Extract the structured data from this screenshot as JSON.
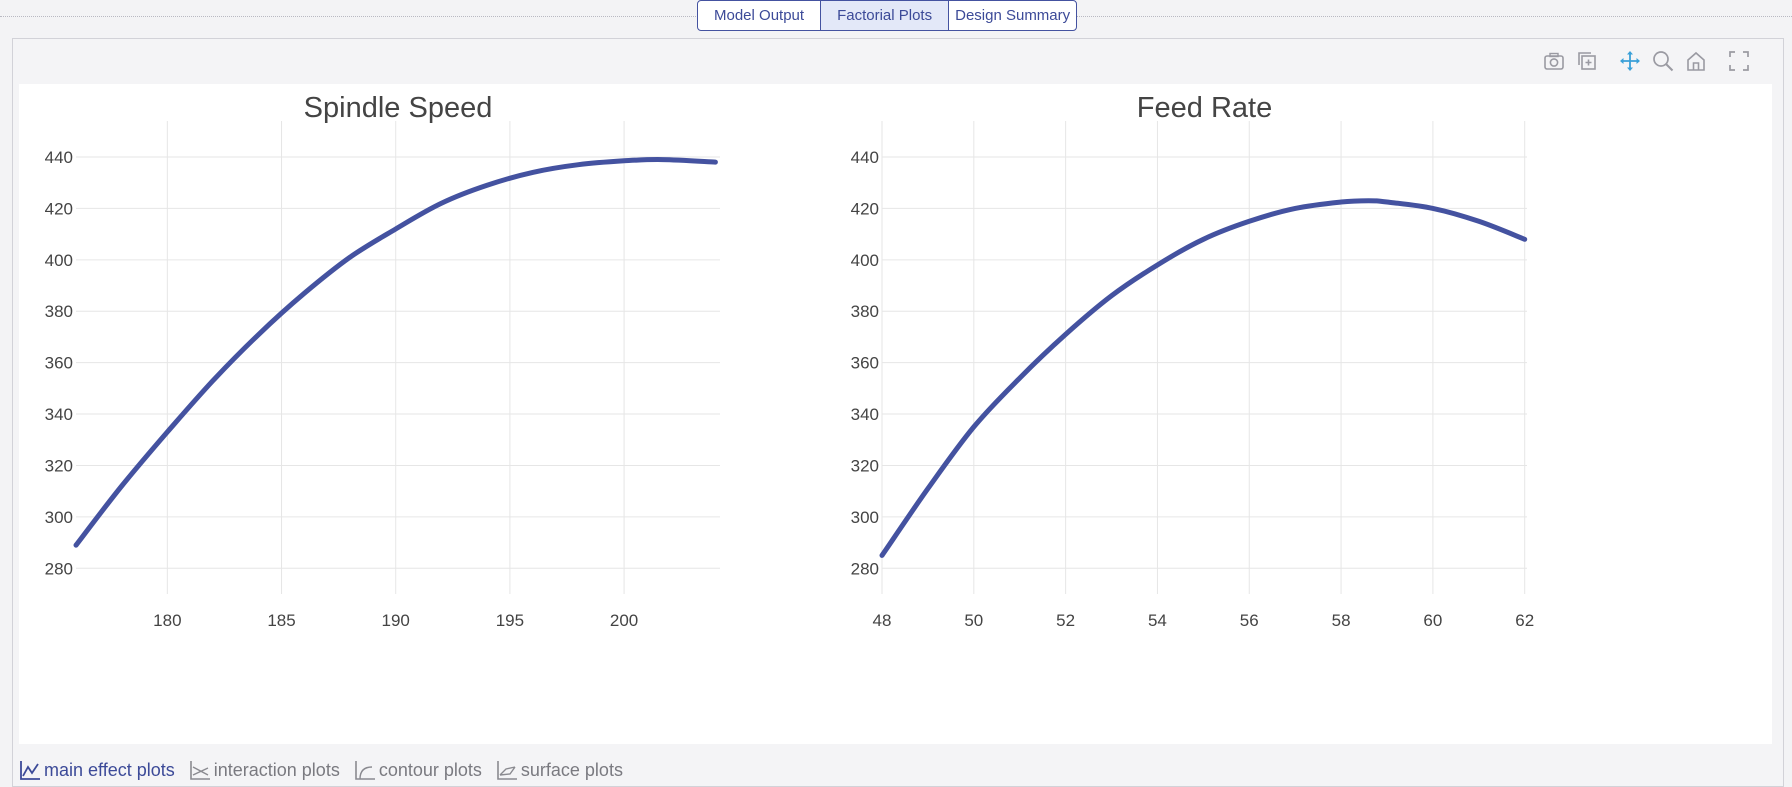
{
  "tabs": [
    {
      "label": "Model Output",
      "active": false
    },
    {
      "label": "Factorial Plots",
      "active": true
    },
    {
      "label": "Design Summary",
      "active": false
    }
  ],
  "modebar": [
    "camera-icon",
    "copy-plot-icon",
    "pan-icon",
    "zoom-icon",
    "home-icon",
    "fullscreen-icon"
  ],
  "bottom_tabs": [
    {
      "label": "main effect plots",
      "icon": "line-chart-icon",
      "active": true
    },
    {
      "label": "interaction plots",
      "icon": "interaction-chart-icon",
      "active": false
    },
    {
      "label": "contour plots",
      "icon": "contour-chart-icon",
      "active": false
    },
    {
      "label": "surface plots",
      "icon": "surface-chart-icon",
      "active": false
    }
  ],
  "colors": {
    "accent": "#3c4a98",
    "line": "#4452a0",
    "grid": "#e6e6e6"
  },
  "chart_data": [
    {
      "type": "line",
      "title": "Spindle Speed",
      "xlim": [
        176,
        204.2
      ],
      "ylim": [
        270,
        454
      ],
      "xticks": [
        180,
        185,
        190,
        195,
        200
      ],
      "yticks": [
        280,
        300,
        320,
        340,
        360,
        380,
        400,
        420,
        440
      ],
      "grid": true,
      "series": [
        {
          "x": [
            176,
            178,
            180,
            182,
            184,
            186,
            188,
            190,
            192,
            194,
            196,
            198,
            200,
            201.7,
            204
          ],
          "y": [
            289,
            312,
            333,
            353,
            371,
            387,
            401,
            412,
            422,
            429,
            434,
            437,
            438.5,
            439,
            438
          ]
        }
      ]
    },
    {
      "type": "line",
      "title": "Feed Rate",
      "xlim": [
        48,
        62.05
      ],
      "ylim": [
        270,
        454
      ],
      "xticks": [
        48,
        50,
        52,
        54,
        56,
        58,
        60,
        62
      ],
      "yticks": [
        280,
        300,
        320,
        340,
        360,
        380,
        400,
        420,
        440
      ],
      "grid": true,
      "series": [
        {
          "x": [
            48,
            49,
            50,
            51,
            52,
            53,
            54,
            55,
            56,
            57,
            58,
            58.6,
            59,
            60,
            61,
            62
          ],
          "y": [
            285,
            311,
            335,
            354,
            371,
            386,
            398,
            408,
            415,
            420,
            422.5,
            423,
            422.5,
            420,
            415,
            408
          ]
        }
      ]
    }
  ]
}
